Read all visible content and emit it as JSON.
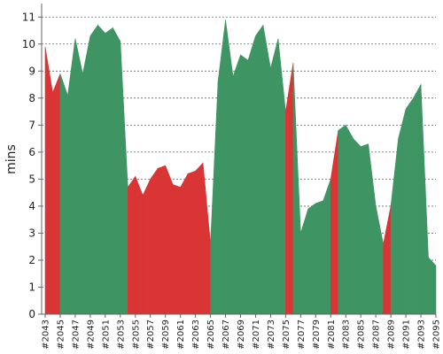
{
  "chart_data": {
    "type": "area",
    "title": "",
    "xlabel": "",
    "ylabel": "mins",
    "ylim": [
      0,
      11.5
    ],
    "yticks": [
      0,
      1,
      2,
      3,
      4,
      5,
      6,
      7,
      8,
      9,
      10,
      11
    ],
    "grid": "horizontal dashed",
    "x": [
      "#2043",
      "#2044",
      "#2045",
      "#2046",
      "#2047",
      "#2048",
      "#2049",
      "#2050",
      "#2051",
      "#2052",
      "#2053",
      "#2054",
      "#2055",
      "#2056",
      "#2057",
      "#2058",
      "#2059",
      "#2060",
      "#2061",
      "#2062",
      "#2063",
      "#2064",
      "#2065",
      "#2066",
      "#2067",
      "#2068",
      "#2069",
      "#2070",
      "#2071",
      "#2072",
      "#2073",
      "#2074",
      "#2075",
      "#2076",
      "#2077",
      "#2078",
      "#2079",
      "#2080",
      "#2081",
      "#2082",
      "#2083",
      "#2084",
      "#2085",
      "#2086",
      "#2087",
      "#2088",
      "#2089",
      "#2090",
      "#2091",
      "#2092",
      "#2093",
      "#2094",
      "#2095"
    ],
    "x_tick_labels": [
      "#2043",
      "#2045",
      "#2047",
      "#2049",
      "#2051",
      "#2053",
      "#2055",
      "#2057",
      "#2059",
      "#2061",
      "#2063",
      "#2065",
      "#2067",
      "#2069",
      "#2071",
      "#2073",
      "#2075",
      "#2077",
      "#2079",
      "#2081",
      "#2083",
      "#2085",
      "#2087",
      "#2089",
      "#2091",
      "#2093",
      "#2095"
    ],
    "values": [
      9.9,
      8.2,
      8.9,
      8.1,
      10.2,
      8.9,
      10.3,
      10.7,
      10.4,
      10.6,
      10.1,
      4.7,
      5.1,
      4.4,
      5.0,
      5.4,
      5.5,
      4.8,
      4.7,
      5.2,
      5.3,
      5.6,
      2.6,
      8.6,
      10.9,
      8.8,
      9.6,
      9.4,
      10.3,
      10.7,
      9.1,
      10.2,
      7.5,
      9.3,
      3.0,
      3.9,
      4.1,
      4.2,
      5.0,
      6.8,
      7.0,
      6.5,
      6.2,
      6.3,
      4.0,
      2.6,
      4.0,
      6.5,
      7.6,
      8.0,
      8.5,
      2.1,
      1.8
    ],
    "status": [
      "red",
      "red",
      "green",
      "green",
      "green",
      "green",
      "green",
      "green",
      "green",
      "green",
      "green",
      "red",
      "red",
      "red",
      "red",
      "red",
      "red",
      "red",
      "red",
      "red",
      "red",
      "red",
      "green",
      "green",
      "green",
      "green",
      "green",
      "green",
      "green",
      "green",
      "green",
      "green",
      "red",
      "green",
      "green",
      "green",
      "green",
      "green",
      "red",
      "green",
      "green",
      "green",
      "green",
      "green",
      "green",
      "red",
      "green",
      "green",
      "green",
      "green",
      "green",
      "green",
      "green"
    ],
    "colors": {
      "green": "#3e9563",
      "red": "#d93535",
      "grid": "#666666",
      "axis": "#666666",
      "text": "#222222"
    }
  }
}
